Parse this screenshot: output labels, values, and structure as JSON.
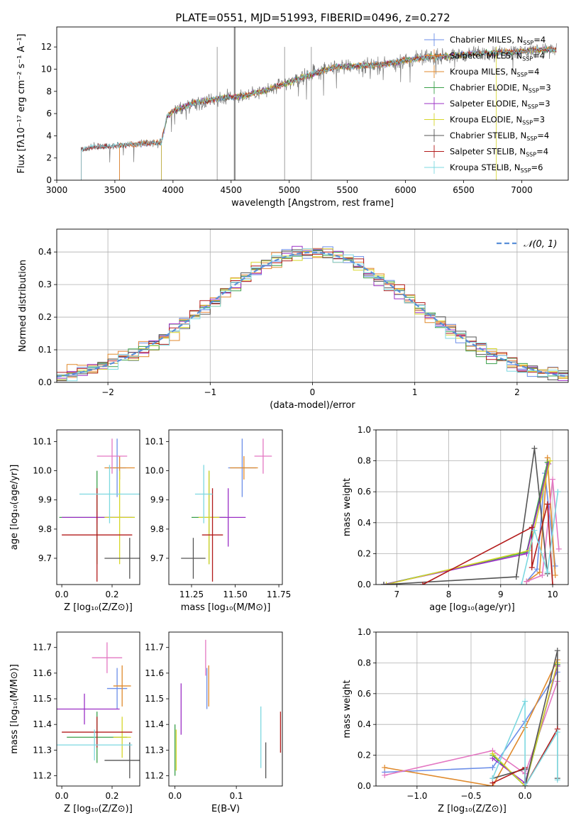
{
  "title": "PLATE=0551, MJD=51993, FIBERID=0496, z=0.272",
  "chart_data": [
    {
      "id": "spectrum",
      "type": "line",
      "xlabel": "wavelength [Angstrom, rest frame]",
      "ylabel": "Flux [fλ10⁻¹⁷ erg cm⁻² s⁻¹ A⁻¹]",
      "xlim": [
        3000,
        7400
      ],
      "ylim": [
        0,
        13.8
      ],
      "xticks": [
        3000,
        3500,
        4000,
        4500,
        5000,
        5500,
        6000,
        6500,
        7000
      ],
      "yticks": [
        0,
        2,
        4,
        6,
        8,
        10,
        12
      ],
      "continuum": {
        "x": [
          3200,
          3300,
          3500,
          3600,
          3900,
          3950,
          4000,
          4200,
          4400,
          4600,
          4800,
          5000,
          5200,
          5400,
          5600,
          5800,
          6000,
          6200,
          6400,
          6600,
          6800,
          7000,
          7200,
          7300
        ],
        "y": [
          2.7,
          3.0,
          3.1,
          3.2,
          3.4,
          5.8,
          6.2,
          7.0,
          7.4,
          7.6,
          8.1,
          8.8,
          9.6,
          10.2,
          10.3,
          10.4,
          10.8,
          11.1,
          11.2,
          11.4,
          11.5,
          11.6,
          11.8,
          11.7
        ]
      },
      "series": [
        {
          "name": "Chabrier MILES, N_SSP=4",
          "color": "#6b8ee8",
          "start": 3540
        },
        {
          "name": "Salpeter MILES, N_SSP=4",
          "color": "#e8863a",
          "start": 3540
        },
        {
          "name": "Kroupa MILES, N_SSP=4",
          "color": "#e08a2c",
          "start": 3540
        },
        {
          "name": "Chabrier ELODIE, N_SSP=3",
          "color": "#3aa04a",
          "start": 3900
        },
        {
          "name": "Salpeter ELODIE, N_SSP=3",
          "color": "#9b2fc5",
          "start": 3900
        },
        {
          "name": "Kroupa ELODIE, N_SSP=3",
          "color": "#d6d62a",
          "start": 3900
        },
        {
          "name": "Chabrier STELIB, N_SSP=4",
          "color": "#555555",
          "start": 3210
        },
        {
          "name": "Salpeter STELIB, N_SSP=4",
          "color": "#b31b1b",
          "start": 3210
        },
        {
          "name": "Kroupa STELIB, N_SSP=6",
          "color": "#7dd8e0",
          "start": 3210
        }
      ],
      "legend": {
        "position": "right",
        "labels": [
          [
            "Chabrier MILES, N",
            "SSP",
            "=4"
          ],
          [
            "Salpeter MILES, N",
            "SSP",
            "=4"
          ],
          [
            "Kroupa MILES, N",
            "SSP",
            "=4"
          ],
          [
            "Chabrier ELODIE, N",
            "SSP",
            "=3"
          ],
          [
            "Salpeter ELODIE, N",
            "SSP",
            "=3"
          ],
          [
            "Kroupa ELODIE, N",
            "SSP",
            "=3"
          ],
          [
            "Chabrier STELIB, N",
            "SSP",
            "=4"
          ],
          [
            "Salpeter STELIB, N",
            "SSP",
            "=4"
          ],
          [
            "Kroupa STELIB, N",
            "SSP",
            "=6"
          ]
        ]
      }
    },
    {
      "id": "residuals",
      "type": "step",
      "xlabel": "(data-model)/error",
      "ylabel": "Normed distribution",
      "xlim": [
        -2.5,
        2.5
      ],
      "ylim": [
        0,
        0.47
      ],
      "xticks": [
        -2,
        -1,
        0,
        1,
        2
      ],
      "xticklabels": [
        "−2",
        "−1",
        "0",
        "1",
        "2"
      ],
      "yticks": [
        0,
        0.1,
        0.2,
        0.3,
        0.4
      ],
      "yticklabels": [
        "0.0",
        "0.1",
        "0.2",
        "0.3",
        "0.4"
      ],
      "grid": true,
      "reference": {
        "label": "𝒩(0, 1)",
        "color": "#5a8fd8",
        "mean": 0,
        "sigma": 1
      },
      "bin_width": 0.1,
      "colors": [
        "#6b8ee8",
        "#e8863a",
        "#e08a2c",
        "#3aa04a",
        "#9b2fc5",
        "#d6d62a",
        "#555555",
        "#b31b1b",
        "#7dd8e0"
      ]
    },
    {
      "id": "Z-age",
      "type": "errorbar",
      "xlabel": "Z [log₁₀(Z/Z⊙)]",
      "ylabel": "age  [log₁₀(age/yr)]",
      "xlim": [
        -0.02,
        0.31
      ],
      "ylim": [
        9.61,
        10.14
      ],
      "xticks": [
        0.0,
        0.2
      ],
      "xticklabels": [
        "0.0",
        "0.2"
      ],
      "yticks": [
        9.7,
        9.8,
        9.9,
        10.0,
        10.1
      ],
      "yticklabels": [
        "9.7",
        "9.8",
        "9.9",
        "10.0",
        "10.1"
      ],
      "points": [
        {
          "x": 0.22,
          "xerr": 0.035,
          "y": 10.01,
          "yerr": 0.1,
          "color": "#6b8ee8"
        },
        {
          "x": 0.23,
          "xerr": 0.06,
          "y": 10.01,
          "yerr": 0.04,
          "color": "#e08a2c"
        },
        {
          "x": 0.2,
          "xerr": 0.06,
          "y": 10.05,
          "yerr": 0.06,
          "color": "#e377c2"
        },
        {
          "x": 0.14,
          "xerr": 0.15,
          "y": 9.84,
          "yerr": 0.16,
          "color": "#3aa04a"
        },
        {
          "x": 0.14,
          "xerr": 0.14,
          "y": 9.84,
          "yerr": 0.02,
          "color": "#9b2fc5"
        },
        {
          "x": 0.23,
          "xerr": 0.06,
          "y": 9.84,
          "yerr": 0.16,
          "color": "#d6d62a"
        },
        {
          "x": 0.27,
          "xerr": 0.1,
          "y": 9.7,
          "yerr": 0.07,
          "color": "#555555"
        },
        {
          "x": 0.14,
          "xerr": 0.14,
          "y": 9.78,
          "yerr": 0.16,
          "color": "#b31b1b"
        },
        {
          "x": 0.19,
          "xerr": 0.12,
          "y": 9.92,
          "yerr": 0.1,
          "color": "#7dd8e0"
        }
      ]
    },
    {
      "id": "mass-age",
      "type": "errorbar",
      "xlabel": "mass [log₁₀(M/M⊙)]",
      "ylabel": "",
      "xlim": [
        11.12,
        11.77
      ],
      "ylim": [
        9.61,
        10.14
      ],
      "xticks": [
        11.25,
        11.5,
        11.75
      ],
      "xticklabels": [
        "11.25",
        "11.50",
        "11.75"
      ],
      "yticks": [
        9.7,
        9.8,
        9.9,
        10.0,
        10.1
      ],
      "yticklabels": [
        "9.7",
        "9.8",
        "9.9",
        "10.0",
        "10.1"
      ],
      "points": [
        {
          "x": 11.54,
          "xerr": 0.08,
          "y": 10.01,
          "yerr": 0.1,
          "color": "#6b8ee8"
        },
        {
          "x": 11.55,
          "xerr": 0.08,
          "y": 10.01,
          "yerr": 0.04,
          "color": "#e08a2c"
        },
        {
          "x": 11.66,
          "xerr": 0.05,
          "y": 10.05,
          "yerr": 0.06,
          "color": "#e377c2"
        },
        {
          "x": 11.35,
          "xerr": 0.1,
          "y": 9.84,
          "yerr": 0.16,
          "color": "#3aa04a"
        },
        {
          "x": 11.46,
          "xerr": 0.1,
          "y": 9.84,
          "yerr": 0.1,
          "color": "#9b2fc5"
        },
        {
          "x": 11.35,
          "xerr": 0.06,
          "y": 9.84,
          "yerr": 0.16,
          "color": "#d6d62a"
        },
        {
          "x": 11.26,
          "xerr": 0.07,
          "y": 9.7,
          "yerr": 0.07,
          "color": "#555555"
        },
        {
          "x": 11.37,
          "xerr": 0.06,
          "y": 9.78,
          "yerr": 0.16,
          "color": "#b31b1b"
        },
        {
          "x": 11.32,
          "xerr": 0.05,
          "y": 9.92,
          "yerr": 0.1,
          "color": "#7dd8e0"
        }
      ]
    },
    {
      "id": "age-weight",
      "type": "line",
      "xlabel": "age  [log₁₀(age/yr)]",
      "ylabel": "mass weight",
      "xlim": [
        6.6,
        10.3
      ],
      "ylim": [
        0,
        1.0
      ],
      "xticks": [
        7,
        8,
        9,
        10
      ],
      "xticklabels": [
        "7",
        "8",
        "9",
        "10"
      ],
      "yticks": [
        0,
        0.2,
        0.4,
        0.6,
        0.8,
        1.0
      ],
      "yticklabels": [
        "0.0",
        "0.2",
        "0.4",
        "0.6",
        "0.8",
        "1.0"
      ],
      "grid": true,
      "series": [
        {
          "color": "#6b8ee8",
          "x": [
            9.5,
            9.7,
            9.85,
            10.05
          ],
          "y": [
            0.02,
            0.1,
            0.72,
            0.12
          ]
        },
        {
          "color": "#e08a2c",
          "x": [
            9.5,
            9.75,
            9.9,
            10.05
          ],
          "y": [
            0.02,
            0.08,
            0.82,
            0.06
          ]
        },
        {
          "color": "#e377c2",
          "x": [
            9.5,
            9.8,
            10.0,
            10.12
          ],
          "y": [
            0.02,
            0.06,
            0.68,
            0.23
          ]
        },
        {
          "color": "#3aa04a",
          "x": [
            6.75,
            9.5,
            9.9
          ],
          "y": [
            0.0,
            0.21,
            0.79
          ]
        },
        {
          "color": "#9b2fc5",
          "x": [
            6.75,
            9.5,
            9.92
          ],
          "y": [
            0.0,
            0.2,
            0.78
          ]
        },
        {
          "color": "#d6d62a",
          "x": [
            6.8,
            9.55,
            9.95
          ],
          "y": [
            0.0,
            0.22,
            0.8
          ]
        },
        {
          "color": "#555555",
          "x": [
            6.75,
            9.3,
            9.65,
            9.9
          ],
          "y": [
            0.0,
            0.05,
            0.88,
            0.07
          ]
        },
        {
          "color": "#b31b1b",
          "x": [
            7.5,
            9.6,
            9.6,
            9.9,
            10.0
          ],
          "y": [
            0.0,
            0.37,
            0.11,
            0.52,
            0.0
          ]
        },
        {
          "color": "#7dd8e0",
          "x": [
            9.4,
            9.65,
            9.9,
            10.1
          ],
          "y": [
            0.0,
            0.35,
            0.08,
            0.6
          ]
        }
      ]
    },
    {
      "id": "Z-mass",
      "type": "errorbar",
      "xlabel": "Z [log₁₀(Z/Z⊙)]",
      "ylabel": "mass [log₁₀(M/M⊙)]",
      "xlim": [
        -0.02,
        0.31
      ],
      "ylim": [
        11.16,
        11.76
      ],
      "xticks": [
        0.0,
        0.2
      ],
      "xticklabels": [
        "0.0",
        "0.2"
      ],
      "yticks": [
        11.2,
        11.3,
        11.4,
        11.5,
        11.6,
        11.7
      ],
      "yticklabels": [
        "11.2",
        "11.3",
        "11.4",
        "11.5",
        "11.6",
        "11.7"
      ],
      "points": [
        {
          "x": 0.22,
          "xerr": 0.04,
          "y": 11.54,
          "yerr": 0.08,
          "color": "#6b8ee8"
        },
        {
          "x": 0.24,
          "xerr": 0.035,
          "y": 11.55,
          "yerr": 0.08,
          "color": "#e08a2c"
        },
        {
          "x": 0.18,
          "xerr": 0.06,
          "y": 11.66,
          "yerr": 0.06,
          "color": "#e377c2"
        },
        {
          "x": 0.14,
          "xerr": 0.12,
          "y": 11.35,
          "yerr": 0.1,
          "color": "#3aa04a"
        },
        {
          "x": 0.09,
          "xerr": 0.14,
          "y": 11.46,
          "yerr": 0.06,
          "color": "#9b2fc5"
        },
        {
          "x": 0.24,
          "xerr": 0.035,
          "y": 11.35,
          "yerr": 0.08,
          "color": "#d6d62a"
        },
        {
          "x": 0.27,
          "xerr": 0.1,
          "y": 11.26,
          "yerr": 0.07,
          "color": "#555555"
        },
        {
          "x": 0.14,
          "xerr": 0.14,
          "y": 11.37,
          "yerr": 0.06,
          "color": "#b31b1b"
        },
        {
          "x": 0.13,
          "xerr": 0.15,
          "y": 11.32,
          "yerr": 0.06,
          "color": "#7dd8e0"
        }
      ]
    },
    {
      "id": "EBV-mass",
      "type": "errorbar",
      "xlabel": "E(B-V)",
      "ylabel": "",
      "xlim": [
        -0.01,
        0.175
      ],
      "ylim": [
        11.16,
        11.76
      ],
      "xticks": [
        0.0,
        0.1
      ],
      "xticklabels": [
        "0.0",
        "0.1"
      ],
      "yticks": [
        11.2,
        11.3,
        11.4,
        11.5,
        11.6,
        11.7
      ],
      "yticklabels": [
        "11.2",
        "11.3",
        "11.4",
        "11.5",
        "11.6",
        "11.7"
      ],
      "points": [
        {
          "x": 0.052,
          "y": 11.54,
          "yerr": 0.08,
          "color": "#6b8ee8"
        },
        {
          "x": 0.055,
          "y": 11.55,
          "yerr": 0.08,
          "color": "#e08a2c"
        },
        {
          "x": 0.05,
          "y": 11.66,
          "yerr": 0.07,
          "color": "#e377c2"
        },
        {
          "x": 0.0,
          "y": 11.3,
          "yerr": 0.1,
          "color": "#3aa04a"
        },
        {
          "x": 0.01,
          "y": 11.46,
          "yerr": 0.1,
          "color": "#9b2fc5"
        },
        {
          "x": 0.002,
          "y": 11.3,
          "yerr": 0.08,
          "color": "#d6d62a"
        },
        {
          "x": 0.148,
          "y": 11.26,
          "yerr": 0.07,
          "color": "#555555"
        },
        {
          "x": 0.172,
          "y": 11.37,
          "yerr": 0.08,
          "color": "#b31b1b"
        },
        {
          "x": 0.14,
          "y": 11.35,
          "yerr": 0.12,
          "color": "#7dd8e0"
        }
      ]
    },
    {
      "id": "Z-weight",
      "type": "line",
      "xlabel": "Z [log₁₀(Z/Z⊙)]",
      "ylabel": "mass weight",
      "xlim": [
        -1.38,
        0.4
      ],
      "ylim": [
        0,
        1.0
      ],
      "xticks": [
        -1.0,
        -0.5,
        0.0
      ],
      "xticklabels": [
        "−1.0",
        "−0.5",
        "0.0"
      ],
      "yticks": [
        0,
        0.2,
        0.4,
        0.6,
        0.8,
        1.0
      ],
      "yticklabels": [
        "0.0",
        "0.2",
        "0.4",
        "0.6",
        "0.8",
        "1.0"
      ],
      "grid": true,
      "series": [
        {
          "color": "#6b8ee8",
          "x": [
            -1.3,
            -0.3,
            0.0,
            0.3
          ],
          "y": [
            0.09,
            0.12,
            0.42,
            0.74
          ]
        },
        {
          "color": "#e08a2c",
          "x": [
            -1.3,
            -0.3,
            0.0,
            0.3
          ],
          "y": [
            0.12,
            0.0,
            0.38,
            0.82
          ]
        },
        {
          "color": "#e377c2",
          "x": [
            -1.3,
            -0.3,
            0.0,
            0.3
          ],
          "y": [
            0.07,
            0.23,
            0.08,
            0.68
          ]
        },
        {
          "color": "#3aa04a",
          "x": [
            -0.3,
            0.0,
            0.3
          ],
          "y": [
            0.2,
            0.0,
            0.79
          ]
        },
        {
          "color": "#9b2fc5",
          "x": [
            -0.3,
            0.0,
            0.3
          ],
          "y": [
            0.18,
            0.02,
            0.78
          ]
        },
        {
          "color": "#d6d62a",
          "x": [
            -0.3,
            0.0,
            0.3
          ],
          "y": [
            0.21,
            0.0,
            0.8
          ]
        },
        {
          "color": "#555555",
          "x": [
            -0.3,
            0.0,
            0.0,
            0.3,
            0.3
          ],
          "y": [
            0.05,
            0.11,
            0.0,
            0.88,
            0.05
          ]
        },
        {
          "color": "#b31b1b",
          "x": [
            -0.3,
            0.0,
            0.0,
            0.3
          ],
          "y": [
            0.02,
            0.12,
            0.0,
            0.37
          ]
        },
        {
          "color": "#7dd8e0",
          "x": [
            -0.3,
            0.0,
            0.0,
            0.3,
            0.3
          ],
          "y": [
            0.05,
            0.55,
            0.0,
            0.35,
            0.04
          ]
        }
      ]
    }
  ]
}
